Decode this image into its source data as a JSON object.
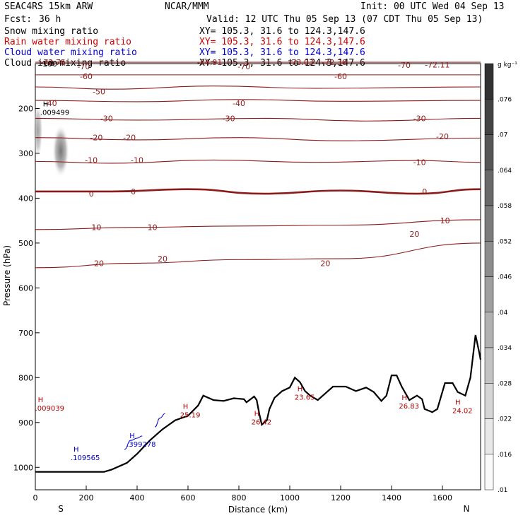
{
  "header": {
    "model": "SEAC4RS 15km ARW",
    "fcst_label": "Fcst:",
    "fcst_value": "36 h",
    "center": "NCAR/MMM",
    "init": "Init: 00 UTC Wed 04 Sep 13",
    "valid": "Valid: 12 UTC Thu 05 Sep 13 (07 CDT Thu 05 Sep 13)",
    "fields": [
      {
        "name": "Snow mixing ratio",
        "xy": "XY= 105.3, 31.6 to 124.3,147.6",
        "color": "#000000"
      },
      {
        "name": "Rain water mixing ratio",
        "xy": "XY= 105.3, 31.6 to 124.3,147.6",
        "color": "#cc0000"
      },
      {
        "name": "Cloud water mixing ratio",
        "xy": "XY= 105.3, 31.6 to 124.3,147.6",
        "color": "#0000cc"
      },
      {
        "name": "Cloud ice mixing ratio",
        "xy": "XY= 105.3, 31.6 to 124.3,147.6",
        "color": "#000000"
      }
    ]
  },
  "chart_data": {
    "type": "cross-section",
    "xlabel": "Distance (km)",
    "ylabel": "Pressure (hPa)",
    "xlim": [
      0,
      1750
    ],
    "ylim": [
      1050,
      100
    ],
    "x_ticks": [
      0,
      200,
      400,
      600,
      800,
      1000,
      1200,
      1400,
      1600
    ],
    "y_ticks": [
      200,
      300,
      400,
      500,
      600,
      700,
      800,
      900,
      1000
    ],
    "y_top_label": "100",
    "endpoints": {
      "left": "S",
      "right": "N"
    },
    "colorbar": {
      "unit": "g kg⁻¹",
      "ticks": [
        ".01",
        ".016",
        ".022",
        ".028",
        ".034",
        ".04",
        ".046",
        ".052",
        ".058",
        ".064",
        ".07",
        ".076"
      ]
    },
    "temperature_contours": [
      {
        "value": -70,
        "levels": [
          [
            0,
            97
          ],
          [
            1750,
            97
          ]
        ]
      },
      {
        "value": -60,
        "levels": [
          [
            0,
            125
          ],
          [
            1750,
            125
          ]
        ]
      },
      {
        "value": -50,
        "levels": [
          [
            0,
            152
          ],
          [
            300,
            157
          ],
          [
            700,
            150
          ],
          [
            1100,
            155
          ],
          [
            1750,
            152
          ]
        ]
      },
      {
        "value": -40,
        "levels": [
          [
            0,
            182
          ],
          [
            400,
            185
          ],
          [
            800,
            180
          ],
          [
            1200,
            184
          ],
          [
            1750,
            182
          ]
        ]
      },
      {
        "value": -30,
        "levels": [
          [
            0,
            222
          ],
          [
            400,
            226
          ],
          [
            900,
            222
          ],
          [
            1300,
            228
          ],
          [
            1750,
            222
          ]
        ]
      },
      {
        "value": -20,
        "levels": [
          [
            0,
            265
          ],
          [
            400,
            270
          ],
          [
            800,
            265
          ],
          [
            1200,
            272
          ],
          [
            1750,
            266
          ]
        ]
      },
      {
        "value": -10,
        "levels": [
          [
            0,
            318
          ],
          [
            300,
            322
          ],
          [
            700,
            315
          ],
          [
            1100,
            320
          ],
          [
            1500,
            316
          ],
          [
            1750,
            320
          ]
        ]
      },
      {
        "value": 0,
        "levels": [
          [
            0,
            385
          ],
          [
            300,
            385
          ],
          [
            600,
            380
          ],
          [
            900,
            390
          ],
          [
            1200,
            383
          ],
          [
            1500,
            390
          ],
          [
            1750,
            380
          ]
        ]
      },
      {
        "value": 10,
        "levels": [
          [
            0,
            470
          ],
          [
            400,
            465
          ],
          [
            800,
            462
          ],
          [
            1200,
            460
          ],
          [
            1750,
            448
          ]
        ]
      },
      {
        "value": 20,
        "levels": [
          [
            0,
            555
          ],
          [
            400,
            545
          ],
          [
            800,
            537
          ],
          [
            1200,
            535
          ],
          [
            1750,
            500
          ]
        ]
      }
    ],
    "labels": {
      "temperature": [
        {
          "text": "-72.75",
          "x": 70,
          "y": 97
        },
        {
          "text": "-74.91",
          "x": 685,
          "y": 97
        },
        {
          "text": "-73.03",
          "x": 1045,
          "y": 97
        },
        {
          "text": "-72.36",
          "x": 1175,
          "y": 97
        },
        {
          "text": "-72.11",
          "x": 1580,
          "y": 102
        },
        {
          "text": "-70",
          "x": 190,
          "y": 106
        },
        {
          "text": "-70",
          "x": 820,
          "y": 106
        },
        {
          "text": "-70",
          "x": 1450,
          "y": 103
        },
        {
          "text": "-60",
          "x": 200,
          "y": 128
        },
        {
          "text": "-60",
          "x": 1200,
          "y": 128
        },
        {
          "text": "-50",
          "x": 250,
          "y": 162
        },
        {
          "text": "-40",
          "x": 60,
          "y": 188
        },
        {
          "text": "-40",
          "x": 800,
          "y": 188
        },
        {
          "text": "-30",
          "x": 280,
          "y": 222
        },
        {
          "text": "-30",
          "x": 760,
          "y": 222
        },
        {
          "text": "-30",
          "x": 1510,
          "y": 222
        },
        {
          "text": "-20",
          "x": 240,
          "y": 265
        },
        {
          "text": "-20",
          "x": 370,
          "y": 265
        },
        {
          "text": "-20",
          "x": 1600,
          "y": 262
        },
        {
          "text": "-10",
          "x": 220,
          "y": 315
        },
        {
          "text": "-10",
          "x": 400,
          "y": 315
        },
        {
          "text": "-10",
          "x": 1510,
          "y": 320
        },
        {
          "text": "0",
          "x": 220,
          "y": 390
        },
        {
          "text": "0",
          "x": 385,
          "y": 385
        },
        {
          "text": "0",
          "x": 1530,
          "y": 385
        },
        {
          "text": "10",
          "x": 240,
          "y": 465
        },
        {
          "text": "10",
          "x": 460,
          "y": 465
        },
        {
          "text": "10",
          "x": 1610,
          "y": 450
        },
        {
          "text": "20",
          "x": 250,
          "y": 545
        },
        {
          "text": "20",
          "x": 500,
          "y": 535
        },
        {
          "text": "20",
          "x": 1140,
          "y": 545
        },
        {
          "text": "20",
          "x": 1490,
          "y": 480
        }
      ],
      "maxima_rain": [
        {
          "mark": "H",
          "value": ".009039",
          "x": 10,
          "y": 855
        },
        {
          "mark": "H",
          "value": "25.19",
          "x": 580,
          "y": 870
        },
        {
          "mark": "H",
          "value": "26.42",
          "x": 860,
          "y": 885
        },
        {
          "mark": "H",
          "value": "23.65",
          "x": 1030,
          "y": 830
        },
        {
          "mark": "H",
          "value": "26.83",
          "x": 1440,
          "y": 850
        },
        {
          "mark": "H",
          "value": "24.02",
          "x": 1650,
          "y": 860
        }
      ],
      "maxima_cloudwater": [
        {
          "mark": "H",
          "value": ".109565",
          "x": 150,
          "y": 965
        },
        {
          "mark": "H",
          "value": ".399278",
          "x": 370,
          "y": 935
        }
      ],
      "maxima_snow": [
        {
          "mark": "H",
          "value": ".009499",
          "x": 30,
          "y": 195
        }
      ],
      "cloudwater_patches": [
        {
          "points": [
            [
              350,
              960
            ],
            [
              375,
              940
            ],
            [
              400,
              935
            ],
            [
              420,
              930
            ]
          ]
        },
        {
          "points": [
            [
              470,
              910
            ],
            [
              490,
              890
            ],
            [
              510,
              880
            ]
          ]
        }
      ]
    },
    "terrain": [
      [
        0,
        1010
      ],
      [
        270,
        1010
      ],
      [
        300,
        1005
      ],
      [
        360,
        990
      ],
      [
        400,
        970
      ],
      [
        450,
        940
      ],
      [
        500,
        915
      ],
      [
        550,
        895
      ],
      [
        600,
        885
      ],
      [
        640,
        862
      ],
      [
        660,
        840
      ],
      [
        700,
        850
      ],
      [
        740,
        852
      ],
      [
        780,
        846
      ],
      [
        820,
        848
      ],
      [
        830,
        855
      ],
      [
        860,
        842
      ],
      [
        870,
        850
      ],
      [
        880,
        880
      ],
      [
        890,
        905
      ],
      [
        910,
        895
      ],
      [
        920,
        870
      ],
      [
        940,
        845
      ],
      [
        970,
        830
      ],
      [
        1000,
        822
      ],
      [
        1020,
        800
      ],
      [
        1040,
        810
      ],
      [
        1060,
        830
      ],
      [
        1080,
        840
      ],
      [
        1110,
        850
      ],
      [
        1140,
        835
      ],
      [
        1170,
        820
      ],
      [
        1220,
        820
      ],
      [
        1260,
        830
      ],
      [
        1300,
        822
      ],
      [
        1330,
        832
      ],
      [
        1360,
        852
      ],
      [
        1380,
        840
      ],
      [
        1400,
        795
      ],
      [
        1420,
        795
      ],
      [
        1440,
        820
      ],
      [
        1470,
        850
      ],
      [
        1500,
        840
      ],
      [
        1520,
        848
      ],
      [
        1530,
        870
      ],
      [
        1560,
        877
      ],
      [
        1580,
        870
      ],
      [
        1610,
        812
      ],
      [
        1640,
        812
      ],
      [
        1660,
        832
      ],
      [
        1690,
        840
      ],
      [
        1710,
        800
      ],
      [
        1730,
        705
      ],
      [
        1745,
        745
      ],
      [
        1750,
        760
      ]
    ]
  }
}
